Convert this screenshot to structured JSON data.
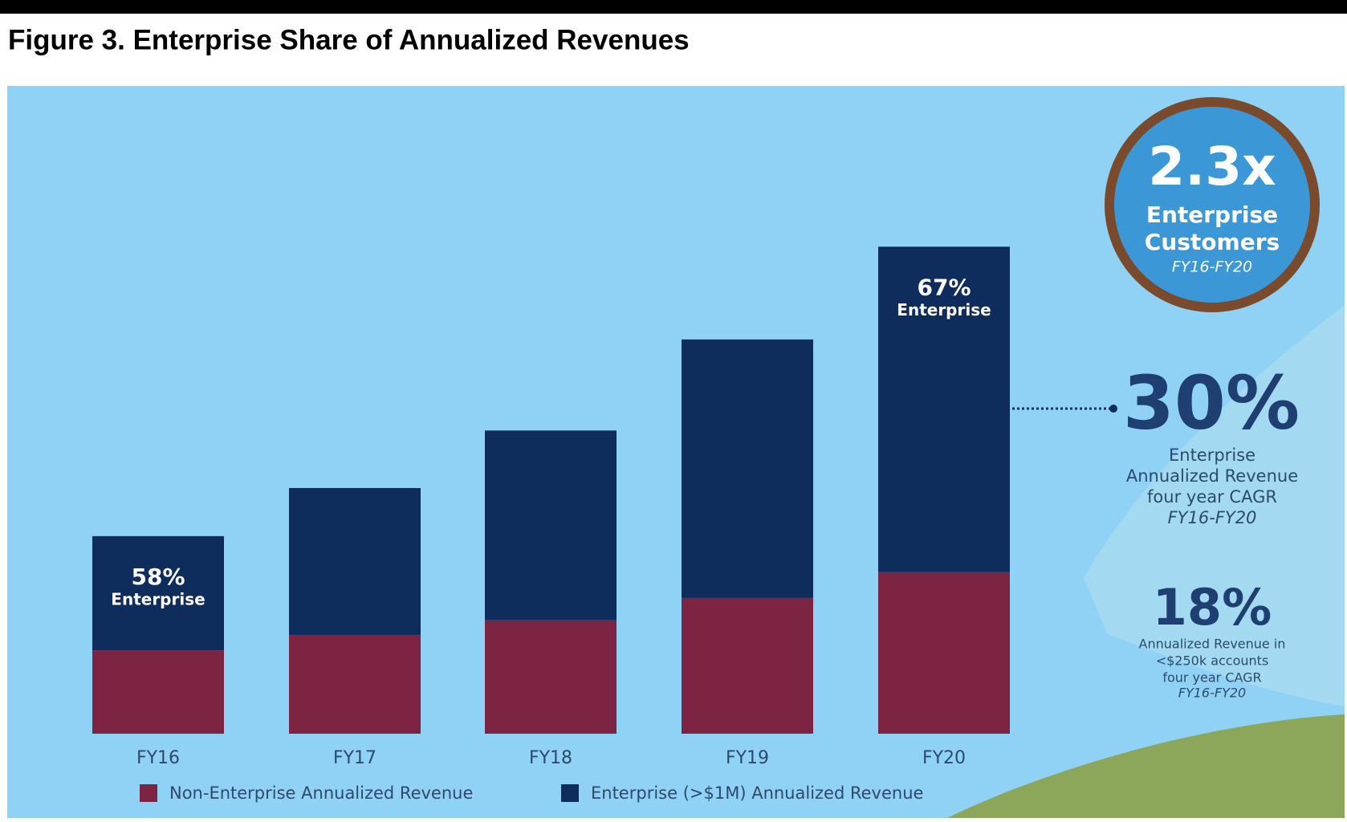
{
  "chart_data": {
    "type": "stacked_bar",
    "title": "Figure 3. Enterprise Share of Annualized Revenues",
    "categories": [
      "FY16",
      "FY17",
      "FY18",
      "FY19",
      "FY20"
    ],
    "series": [
      {
        "name": "Non-Enterprise Annualized Revenue",
        "color": "#7d2443",
        "values": [
          97,
          115,
          132,
          158,
          188
        ]
      },
      {
        "name": "Enterprise (>$1M) Annualized Revenue",
        "color": "#0f2d5c",
        "values": [
          133,
          171,
          221,
          301,
          379
        ]
      }
    ],
    "bar_annotations": [
      {
        "category": "FY16",
        "value": "58%",
        "text": "Enterprise"
      },
      {
        "category": "FY20",
        "value": "67%",
        "text": "Enterprise"
      }
    ],
    "callouts": {
      "customers": {
        "value": "2.3x",
        "lines": [
          "Enterprise",
          "Customers"
        ],
        "period": "FY16-FY20"
      },
      "enterprise_cagr": {
        "value": "30%",
        "lines": [
          "Enterprise",
          "Annualized Revenue",
          "four year CAGR"
        ],
        "period": "FY16-FY20"
      },
      "small_cagr": {
        "value": "18%",
        "lines": [
          "Annualized Revenue in",
          "<$250k accounts",
          "four year CAGR"
        ],
        "period": "FY16-FY20"
      }
    }
  }
}
